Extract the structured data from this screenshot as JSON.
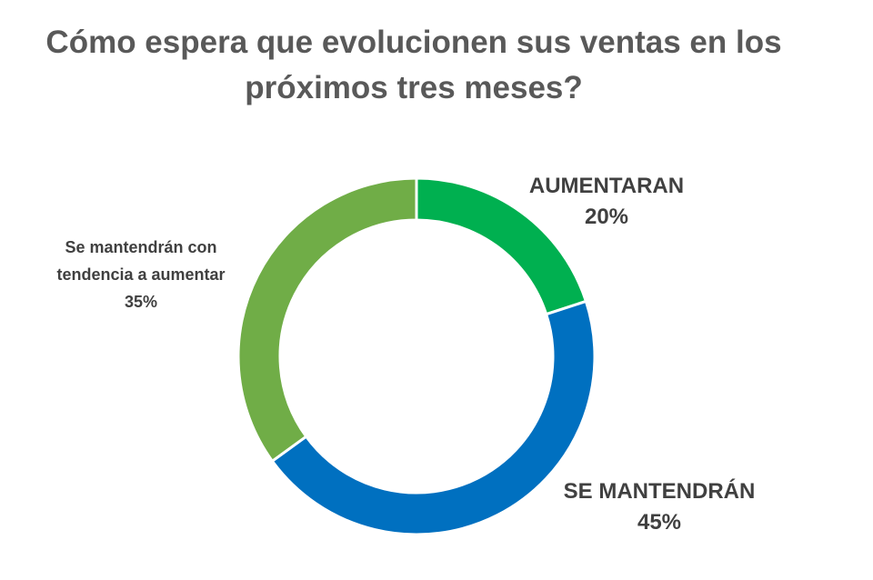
{
  "chart_data": {
    "type": "donut",
    "title_lines": [
      "Cómo espera que evolucionen sus ventas en los",
      "próximos tres meses?"
    ],
    "slices": [
      {
        "label": "AUMENTARAN",
        "label_lines": [
          "AUMENTARAN"
        ],
        "value": 20,
        "value_label": "20%",
        "color": "#00B050"
      },
      {
        "label": "SE MANTENDRÁN",
        "label_lines": [
          "SE MANTENDRÁN"
        ],
        "value": 45,
        "value_label": "45%",
        "color": "#0070C0"
      },
      {
        "label": "Se mantendrán con tendencia a aumentar",
        "label_lines": [
          "Se mantendrán con",
          "tendencia a aumentar"
        ],
        "value": 35,
        "value_label": "35%",
        "color": "#70AD47"
      }
    ],
    "start_angle": "12 o'clock",
    "direction": "clockwise"
  }
}
